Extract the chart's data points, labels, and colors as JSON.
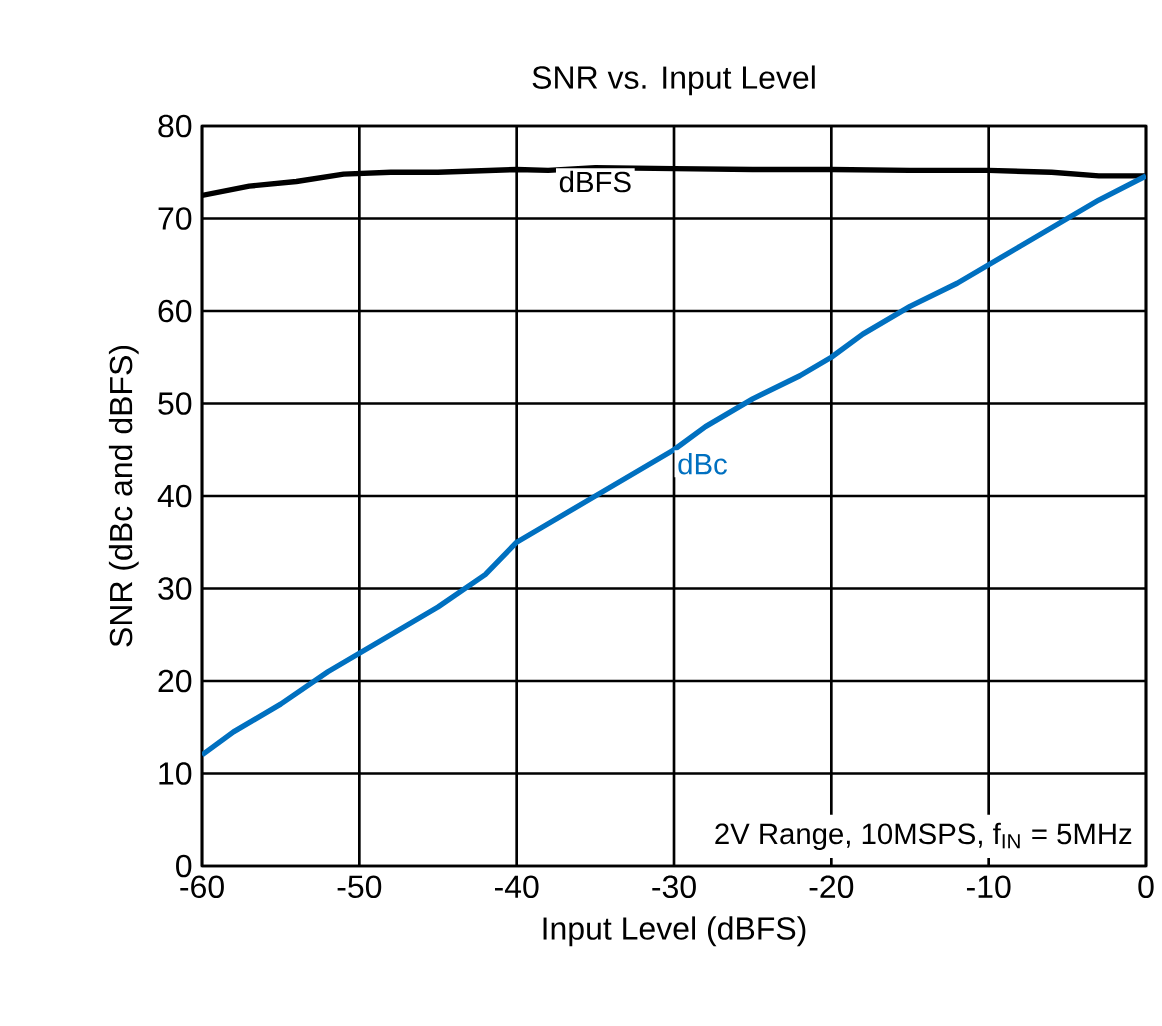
{
  "chart_data": {
    "type": "line",
    "title": "SNR vs. Input Level",
    "xlabel": "Input Level (dBFS)",
    "ylabel": "SNR (dBc and dBFS)",
    "xlim": [
      -60,
      0
    ],
    "xticks": [
      -60,
      -50,
      -40,
      -30,
      -20,
      -10,
      0
    ],
    "ylim": [
      0,
      80
    ],
    "yticks": [
      0,
      10,
      20,
      30,
      40,
      50,
      60,
      70,
      80
    ],
    "grid": true,
    "legend": false,
    "marker": "none",
    "line_style": "solid",
    "annotations": [
      "2V Range, 10MSPS, f$_{IN}$ = 5MHz"
    ],
    "series": [
      {
        "name": "dBFS",
        "color": "#000000",
        "x": [
          -60,
          -57,
          -54,
          -51,
          -48,
          -45,
          -40,
          -38,
          -35,
          -30,
          -25,
          -20,
          -15,
          -10,
          -6,
          -3,
          0
        ],
        "values": [
          72.5,
          73.5,
          74,
          74.8,
          75,
          75,
          75.3,
          75.2,
          75.5,
          75.4,
          75.3,
          75.3,
          75.2,
          75.2,
          75,
          74.6,
          74.6
        ]
      },
      {
        "name": "dBc",
        "color": "#0070c0",
        "x": [
          -60,
          -58,
          -55,
          -52,
          -50,
          -48,
          -45,
          -42,
          -40,
          -38,
          -35,
          -32,
          -30,
          -28,
          -25,
          -22,
          -20,
          -18,
          -15,
          -12,
          -10,
          -8,
          -5,
          -3,
          0
        ],
        "values": [
          12,
          14.5,
          17.5,
          21,
          23,
          25,
          28,
          31.5,
          35,
          37,
          40,
          43,
          45,
          47.5,
          50.5,
          53,
          55,
          57.5,
          60.5,
          63,
          65,
          67,
          70,
          72,
          74.6
        ]
      }
    ]
  }
}
